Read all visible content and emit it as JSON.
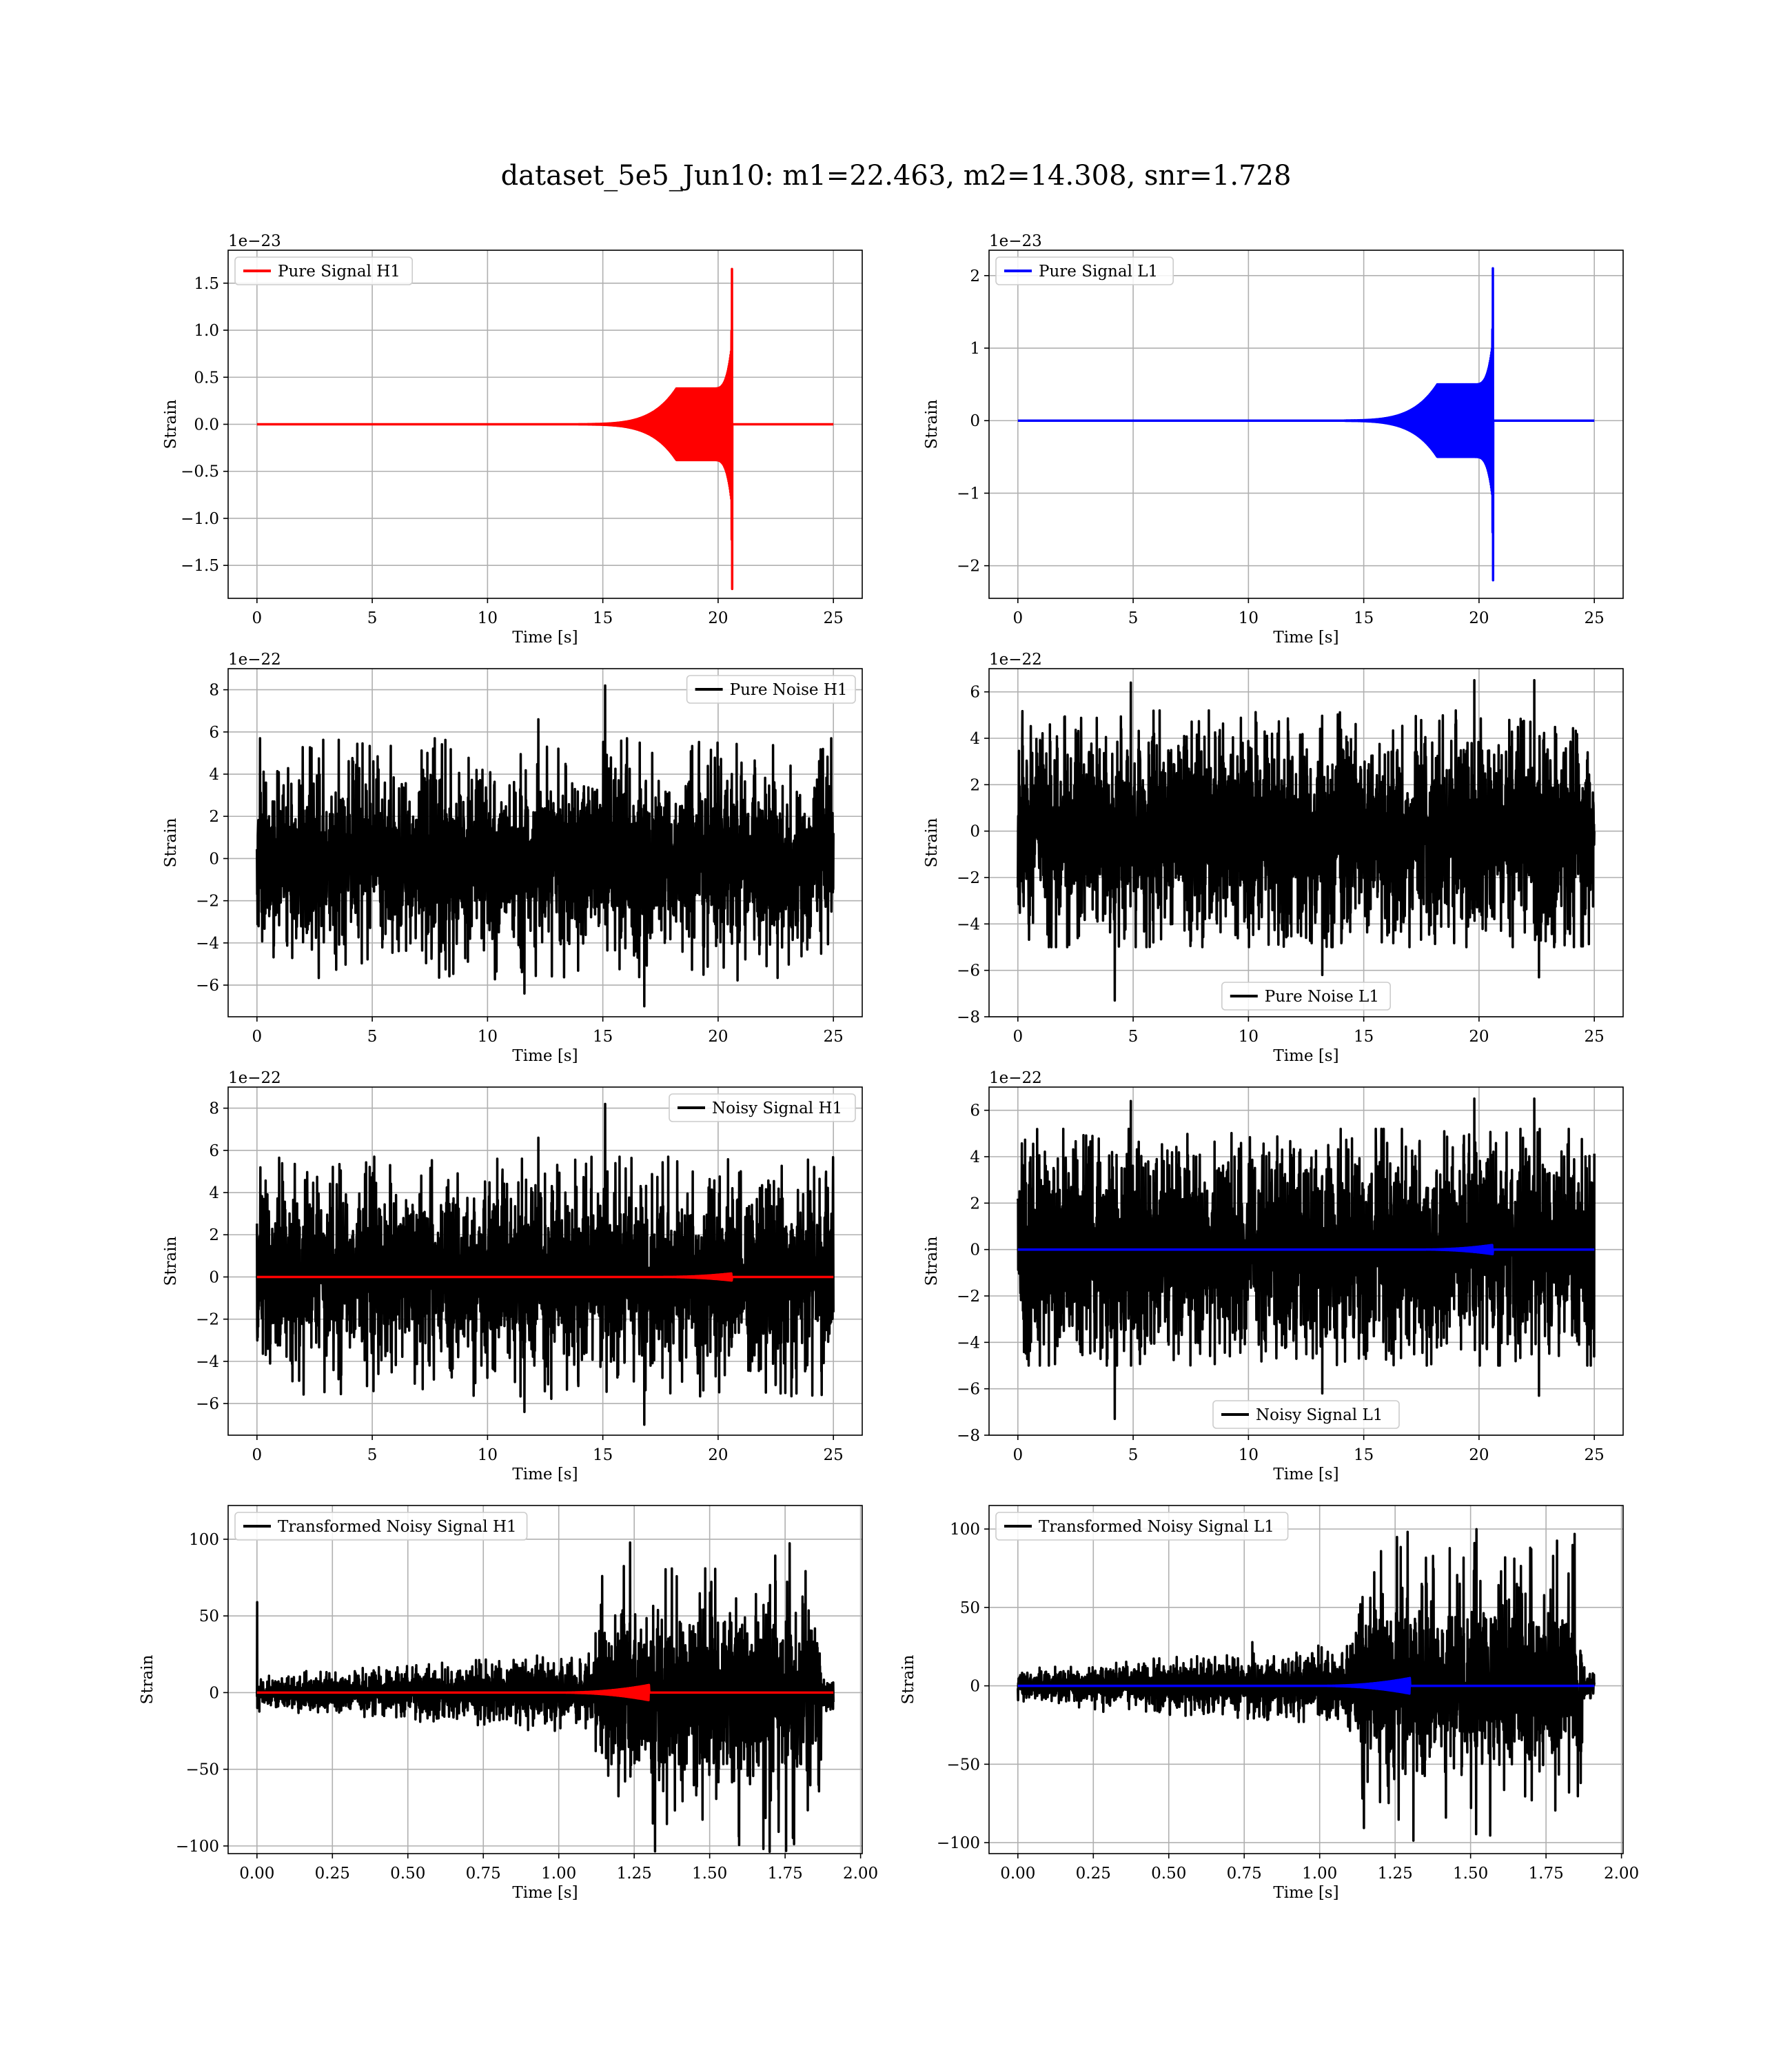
{
  "figure": {
    "title": "dataset_5e5_Jun10: m1=22.463, m2=14.308, snr=1.728"
  },
  "chart_data": [
    {
      "type": "line",
      "legend": "Pure Signal H1",
      "legend_loc": "upper-left",
      "grid": true,
      "xlabel": "Time [s]",
      "ylabel": "Strain",
      "offset_text": "1e−23",
      "xlim": [
        -1.25,
        26.25
      ],
      "ylim": [
        -1.85,
        1.85
      ],
      "xticks": [
        0,
        5,
        10,
        15,
        20,
        25
      ],
      "xtick_labels": [
        "0",
        "5",
        "10",
        "15",
        "20",
        "25"
      ],
      "yticks": [
        -1.5,
        -1.0,
        -0.5,
        0.0,
        0.5,
        1.0,
        1.5
      ],
      "ytick_labels": [
        "−1.5",
        "−1.0",
        "−0.5",
        "0.0",
        "0.5",
        "1.0",
        "1.5"
      ],
      "series": [
        {
          "name": "Pure Signal H1",
          "color": "#ff0000",
          "kind": "chirp",
          "x_range": [
            0,
            25
          ],
          "merger_time": 20.6,
          "inspiral_start": 12.0,
          "plateau_amp": 0.38,
          "peak_pos": 1.65,
          "peak_neg": -1.75
        }
      ]
    },
    {
      "type": "line",
      "legend": "Pure Signal L1",
      "legend_loc": "upper-left",
      "grid": true,
      "xlabel": "Time [s]",
      "ylabel": "Strain",
      "offset_text": "1e−23",
      "xlim": [
        -1.25,
        26.25
      ],
      "ylim": [
        -2.45,
        2.35
      ],
      "xticks": [
        0,
        5,
        10,
        15,
        20,
        25
      ],
      "xtick_labels": [
        "0",
        "5",
        "10",
        "15",
        "20",
        "25"
      ],
      "yticks": [
        -2,
        -1,
        0,
        1,
        2
      ],
      "ytick_labels": [
        "−2",
        "−1",
        "0",
        "1",
        "2"
      ],
      "series": [
        {
          "name": "Pure Signal L1",
          "color": "#0000ff",
          "kind": "chirp",
          "x_range": [
            0,
            25
          ],
          "merger_time": 20.6,
          "inspiral_start": 12.0,
          "plateau_amp": 0.5,
          "peak_pos": 2.1,
          "peak_neg": -2.2
        }
      ]
    },
    {
      "type": "line",
      "legend": "Pure Noise H1",
      "legend_loc": "upper-right",
      "grid": true,
      "xlabel": "Time [s]",
      "ylabel": "Strain",
      "offset_text": "1e−22",
      "xlim": [
        -1.25,
        26.25
      ],
      "ylim": [
        -7.5,
        9.0
      ],
      "xticks": [
        0,
        5,
        10,
        15,
        20,
        25
      ],
      "xtick_labels": [
        "0",
        "5",
        "10",
        "15",
        "20",
        "25"
      ],
      "yticks": [
        -6,
        -4,
        -2,
        0,
        2,
        4,
        6,
        8
      ],
      "ytick_labels": [
        "−6",
        "−4",
        "−2",
        "0",
        "2",
        "4",
        "6",
        "8"
      ],
      "series": [
        {
          "name": "Pure Noise H1",
          "color": "#000000",
          "kind": "noise",
          "x_range": [
            0,
            25
          ],
          "core": 3.0,
          "spike_max": 5.7,
          "spike_min": -5.8,
          "peaks": [
            [
              15.1,
              8.2
            ],
            [
              11.6,
              -6.4
            ],
            [
              16.8,
              -7.0
            ],
            [
              12.2,
              6.6
            ]
          ]
        }
      ]
    },
    {
      "type": "line",
      "legend": "Pure Noise L1",
      "legend_loc": "lower-center",
      "grid": true,
      "xlabel": "Time [s]",
      "ylabel": "Strain",
      "offset_text": "1e−22",
      "xlim": [
        -1.25,
        26.25
      ],
      "ylim": [
        -8.0,
        7.0
      ],
      "xticks": [
        0,
        5,
        10,
        15,
        20,
        25
      ],
      "xtick_labels": [
        "0",
        "5",
        "10",
        "15",
        "20",
        "25"
      ],
      "yticks": [
        -8,
        -6,
        -4,
        -2,
        0,
        2,
        4,
        6
      ],
      "ytick_labels": [
        "−8",
        "−6",
        "−4",
        "−2",
        "0",
        "2",
        "4",
        "6"
      ],
      "series": [
        {
          "name": "Pure Noise L1",
          "color": "#000000",
          "kind": "noise",
          "x_range": [
            0,
            25
          ],
          "core": 3.2,
          "spike_max": 5.2,
          "spike_min": -5.0,
          "peaks": [
            [
              4.2,
              -7.3
            ],
            [
              4.9,
              6.4
            ],
            [
              19.8,
              6.5
            ],
            [
              22.4,
              6.5
            ],
            [
              22.6,
              -6.3
            ],
            [
              13.2,
              -6.2
            ]
          ]
        }
      ]
    },
    {
      "type": "line",
      "legend": "Noisy Signal H1",
      "legend_loc": "upper-right",
      "grid": true,
      "xlabel": "Time [s]",
      "ylabel": "Strain",
      "offset_text": "1e−22",
      "xlim": [
        -1.25,
        26.25
      ],
      "ylim": [
        -7.5,
        9.0
      ],
      "xticks": [
        0,
        5,
        10,
        15,
        20,
        25
      ],
      "xtick_labels": [
        "0",
        "5",
        "10",
        "15",
        "20",
        "25"
      ],
      "yticks": [
        -6,
        -4,
        -2,
        0,
        2,
        4,
        6,
        8
      ],
      "ytick_labels": [
        "−6",
        "−4",
        "−2",
        "0",
        "2",
        "4",
        "6",
        "8"
      ],
      "series": [
        {
          "name": "Noisy Signal H1",
          "color": "#000000",
          "kind": "noise",
          "x_range": [
            0,
            25
          ],
          "core": 3.0,
          "spike_max": 5.7,
          "spike_min": -5.8,
          "peaks": [
            [
              15.1,
              8.2
            ],
            [
              11.6,
              -6.4
            ],
            [
              16.8,
              -7.0
            ],
            [
              12.2,
              6.6
            ]
          ]
        },
        {
          "color": "#ff0000",
          "kind": "small-chirp",
          "x_range": [
            0,
            25
          ],
          "merger_time": 20.6,
          "inspiral_start": 17.5,
          "amp": 0.17
        }
      ]
    },
    {
      "type": "line",
      "legend": "Noisy Signal L1",
      "legend_loc": "lower-center",
      "grid": true,
      "xlabel": "Time [s]",
      "ylabel": "Strain",
      "offset_text": "1e−22",
      "xlim": [
        -1.25,
        26.25
      ],
      "ylim": [
        -8.0,
        7.0
      ],
      "xticks": [
        0,
        5,
        10,
        15,
        20,
        25
      ],
      "xtick_labels": [
        "0",
        "5",
        "10",
        "15",
        "20",
        "25"
      ],
      "yticks": [
        -8,
        -6,
        -4,
        -2,
        0,
        2,
        4,
        6
      ],
      "ytick_labels": [
        "−8",
        "−6",
        "−4",
        "−2",
        "0",
        "2",
        "4",
        "6"
      ],
      "series": [
        {
          "name": "Noisy Signal L1",
          "color": "#000000",
          "kind": "noise",
          "x_range": [
            0,
            25
          ],
          "core": 3.2,
          "spike_max": 5.2,
          "spike_min": -5.0,
          "peaks": [
            [
              4.2,
              -7.3
            ],
            [
              4.9,
              6.4
            ],
            [
              19.8,
              6.5
            ],
            [
              22.4,
              6.5
            ],
            [
              22.6,
              -6.3
            ],
            [
              13.2,
              -6.2
            ]
          ]
        },
        {
          "color": "#0000ff",
          "kind": "small-chirp",
          "x_range": [
            0,
            25
          ],
          "merger_time": 20.6,
          "inspiral_start": 17.5,
          "amp": 0.2
        }
      ]
    },
    {
      "type": "line",
      "legend": "Transformed Noisy Signal H1",
      "legend_loc": "upper-left",
      "grid": true,
      "xlabel": "Time [s]",
      "ylabel": "Strain",
      "offset_text": "",
      "xlim": [
        -0.0955,
        2.0055
      ],
      "ylim": [
        -105,
        122
      ],
      "xticks": [
        0.0,
        0.25,
        0.5,
        0.75,
        1.0,
        1.25,
        1.5,
        1.75,
        2.0
      ],
      "xtick_labels": [
        "0.00",
        "0.25",
        "0.50",
        "0.75",
        "1.00",
        "1.25",
        "1.50",
        "1.75",
        "2.00"
      ],
      "yticks": [
        -100,
        -50,
        0,
        50,
        100
      ],
      "ytick_labels": [
        "−100",
        "−50",
        "0",
        "50",
        "100"
      ],
      "series": [
        {
          "name": "Transformed Noisy Signal H1",
          "color": "#000000",
          "kind": "whitened",
          "x_range": [
            0,
            1.91
          ],
          "step_time": 1.12,
          "end_time": 1.87,
          "early_env": [
            8,
            20
          ],
          "late_amp": 42,
          "late_spike": 105,
          "start_spike": 59
        },
        {
          "color": "#ff0000",
          "kind": "small-chirp",
          "x_range": [
            0,
            1.91
          ],
          "merger_time": 1.3,
          "inspiral_start": 1.0,
          "amp": 5
        }
      ]
    },
    {
      "type": "line",
      "legend": "Transformed Noisy Signal L1",
      "legend_loc": "upper-left",
      "grid": true,
      "xlabel": "Time [s]",
      "ylabel": "Strain",
      "offset_text": "",
      "xlim": [
        -0.0955,
        2.0055
      ],
      "ylim": [
        -107,
        115
      ],
      "xticks": [
        0.0,
        0.25,
        0.5,
        0.75,
        1.0,
        1.25,
        1.5,
        1.75,
        2.0
      ],
      "xtick_labels": [
        "0.00",
        "0.25",
        "0.50",
        "0.75",
        "1.00",
        "1.25",
        "1.50",
        "1.75",
        "2.00"
      ],
      "yticks": [
        -100,
        -50,
        0,
        50,
        100
      ],
      "ytick_labels": [
        "−100",
        "−50",
        "0",
        "50",
        "100"
      ],
      "series": [
        {
          "name": "Transformed Noisy Signal L1",
          "color": "#000000",
          "kind": "whitened",
          "x_range": [
            0,
            1.91
          ],
          "step_time": 1.12,
          "end_time": 1.87,
          "early_env": [
            8,
            20
          ],
          "late_amp": 40,
          "late_spike": 100,
          "start_spike": 0
        },
        {
          "color": "#0000ff",
          "kind": "small-chirp",
          "x_range": [
            0,
            1.91
          ],
          "merger_time": 1.3,
          "inspiral_start": 1.0,
          "amp": 5
        }
      ]
    }
  ]
}
